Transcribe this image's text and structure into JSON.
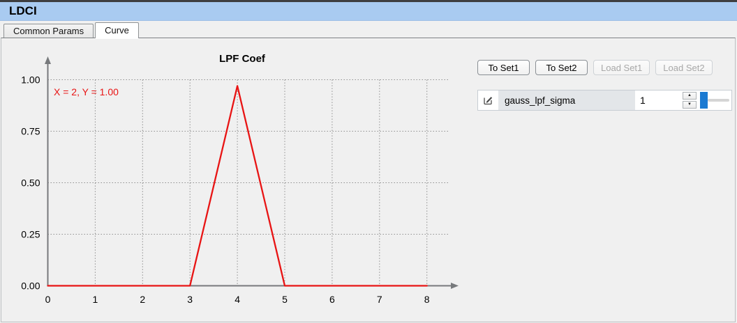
{
  "window": {
    "title": "LDCI"
  },
  "tabs": [
    {
      "label": "Common Params",
      "active": false
    },
    {
      "label": "Curve",
      "active": true
    }
  ],
  "chart_data": {
    "type": "line",
    "title": "LPF Coef",
    "annotation": "X = 2, Y = 1.00",
    "x": [
      0,
      1,
      2,
      3,
      4,
      5,
      6,
      7,
      8
    ],
    "values": [
      0,
      0,
      0,
      0,
      0.97,
      0,
      0,
      0,
      0
    ],
    "xtick_labels": [
      "0",
      "1",
      "2",
      "3",
      "4",
      "5",
      "6",
      "7",
      "8"
    ],
    "ytick_labels": [
      "0.00",
      "0.25",
      "0.50",
      "0.75",
      "1.00"
    ],
    "yticks": [
      0,
      0.25,
      0.5,
      0.75,
      1.0
    ],
    "xlim": [
      0,
      8
    ],
    "ylim": [
      0,
      1
    ],
    "grid": true,
    "legend": false,
    "series_color": "#e81414",
    "axis_color": "#77797c",
    "grid_color": "#8f8f8f"
  },
  "buttons": [
    {
      "label": "To Set1",
      "enabled": true
    },
    {
      "label": "To Set2",
      "enabled": true
    },
    {
      "label": "Load Set1",
      "enabled": false
    },
    {
      "label": "Load Set2",
      "enabled": false
    }
  ],
  "parameter": {
    "name": "gauss_lpf_sigma",
    "value": "1",
    "slider_position": "min"
  },
  "icons": {
    "edit": "pencil-icon",
    "spinner_up": "▲",
    "spinner_down": "▼"
  },
  "colors": {
    "titlebar": "#a9cbf1",
    "slider_handle": "#1b7ad2",
    "curve": "#e81414"
  }
}
